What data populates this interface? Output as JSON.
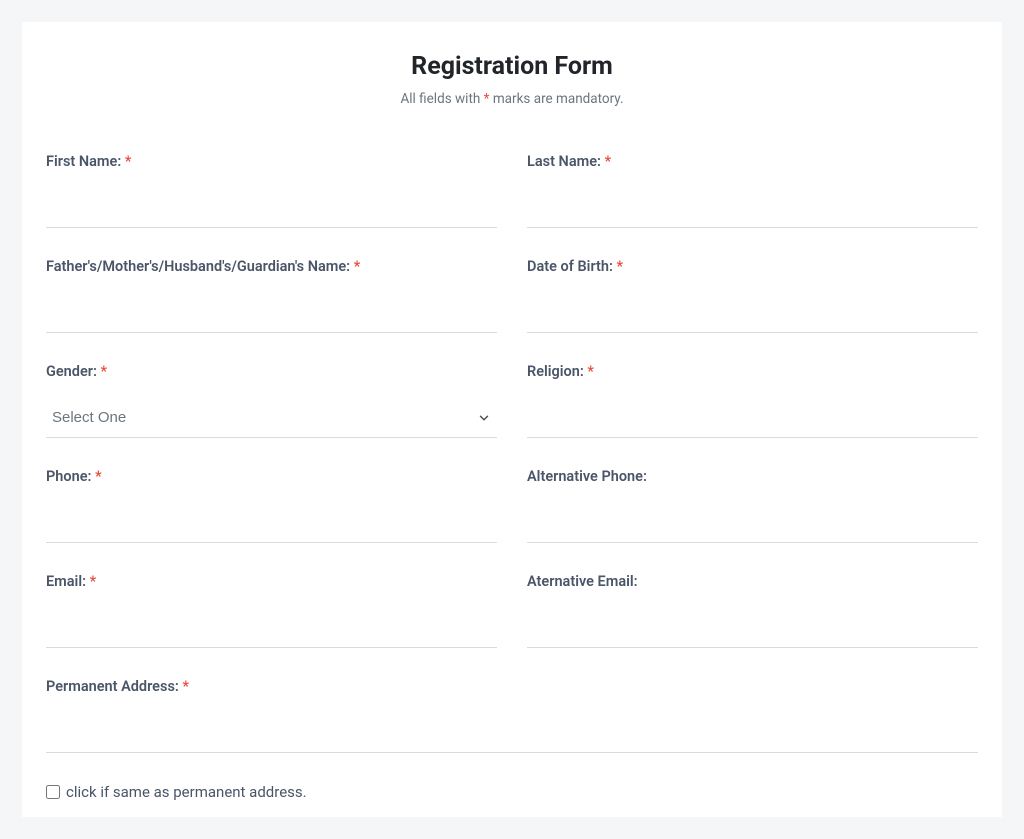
{
  "title": "Registration Form",
  "subtitle_prefix": "All fields with ",
  "subtitle_mark": "*",
  "subtitle_suffix": " marks are mandatory.",
  "asterisk": "*",
  "fields": {
    "first_name": {
      "label": "First Name: ",
      "required": true
    },
    "last_name": {
      "label": "Last Name: ",
      "required": true
    },
    "guardian_name": {
      "label": "Father's/Mother's/Husband's/Guardian's Name: ",
      "required": true
    },
    "dob": {
      "label": "Date of Birth: ",
      "required": true
    },
    "gender": {
      "label": "Gender: ",
      "required": true,
      "placeholder": "Select One"
    },
    "religion": {
      "label": "Religion: ",
      "required": true
    },
    "phone": {
      "label": "Phone: ",
      "required": true
    },
    "alt_phone": {
      "label": "Alternative Phone:",
      "required": false
    },
    "email": {
      "label": "Email: ",
      "required": true
    },
    "alt_email": {
      "label": "Aternative Email:",
      "required": false
    },
    "permanent_address": {
      "label": "Permanent Address: ",
      "required": true
    },
    "same_address": {
      "label": "click if same as permanent address."
    }
  },
  "colors": {
    "page_bg": "#f4f6f8",
    "card_bg": "#ffffff",
    "text": "#4a5568",
    "muted": "#6c757d",
    "required": "#e74c3c",
    "border": "#d8dce0"
  }
}
